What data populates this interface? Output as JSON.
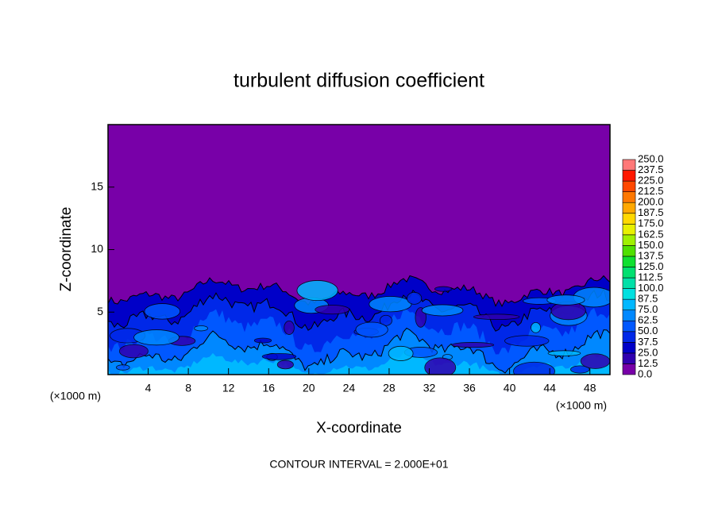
{
  "chart_data": {
    "type": "contour",
    "title": "turbulent diffusion coefficient",
    "x_label": "X-coordinate",
    "y_label": "Z-coordinate",
    "x_unit": "(×1000 m)",
    "y_unit": "(×1000 m)",
    "annotation": "CONTOUR INTERVAL = 2.000E+01",
    "xlim": [
      0,
      50
    ],
    "ylim": [
      0,
      20
    ],
    "xticks": [
      4,
      8,
      12,
      16,
      20,
      24,
      28,
      32,
      36,
      40,
      44,
      48
    ],
    "yticks": [
      5,
      10,
      15
    ],
    "colorbar": {
      "levels": [
        {
          "value": 0,
          "label": "0.0"
        },
        {
          "value": 12.5,
          "label": "12.5"
        },
        {
          "value": 25,
          "label": "25.0"
        },
        {
          "value": 37.5,
          "label": "37.5"
        },
        {
          "value": 50,
          "label": "50.0"
        },
        {
          "value": 62.5,
          "label": "62.5"
        },
        {
          "value": 75,
          "label": "75.0"
        },
        {
          "value": 87.5,
          "label": "87.5"
        },
        {
          "value": 100,
          "label": "100.0"
        },
        {
          "value": 112.5,
          "label": "112.5"
        },
        {
          "value": 125,
          "label": "125.0"
        },
        {
          "value": 137.5,
          "label": "137.5"
        },
        {
          "value": 150,
          "label": "150.0"
        },
        {
          "value": 162.5,
          "label": "162.5"
        },
        {
          "value": 175,
          "label": "175.0"
        },
        {
          "value": 187.5,
          "label": "187.5"
        },
        {
          "value": 200,
          "label": "200.0"
        },
        {
          "value": 212.5,
          "label": "212.5"
        },
        {
          "value": 225,
          "label": "225.0"
        },
        {
          "value": 237.5,
          "label": "237.5"
        },
        {
          "value": 250,
          "label": "250.0"
        }
      ],
      "colors": [
        "#7800a8",
        "#3000b0",
        "#0000c8",
        "#0028e8",
        "#0058ff",
        "#0088ff",
        "#00b8ff",
        "#00e0e0",
        "#00e0a8",
        "#00e070",
        "#10e030",
        "#50e000",
        "#a0f000",
        "#e8f000",
        "#ffd800",
        "#ffa800",
        "#ff7800",
        "#ff4800",
        "#ff1800",
        "#ff7878"
      ]
    }
  }
}
